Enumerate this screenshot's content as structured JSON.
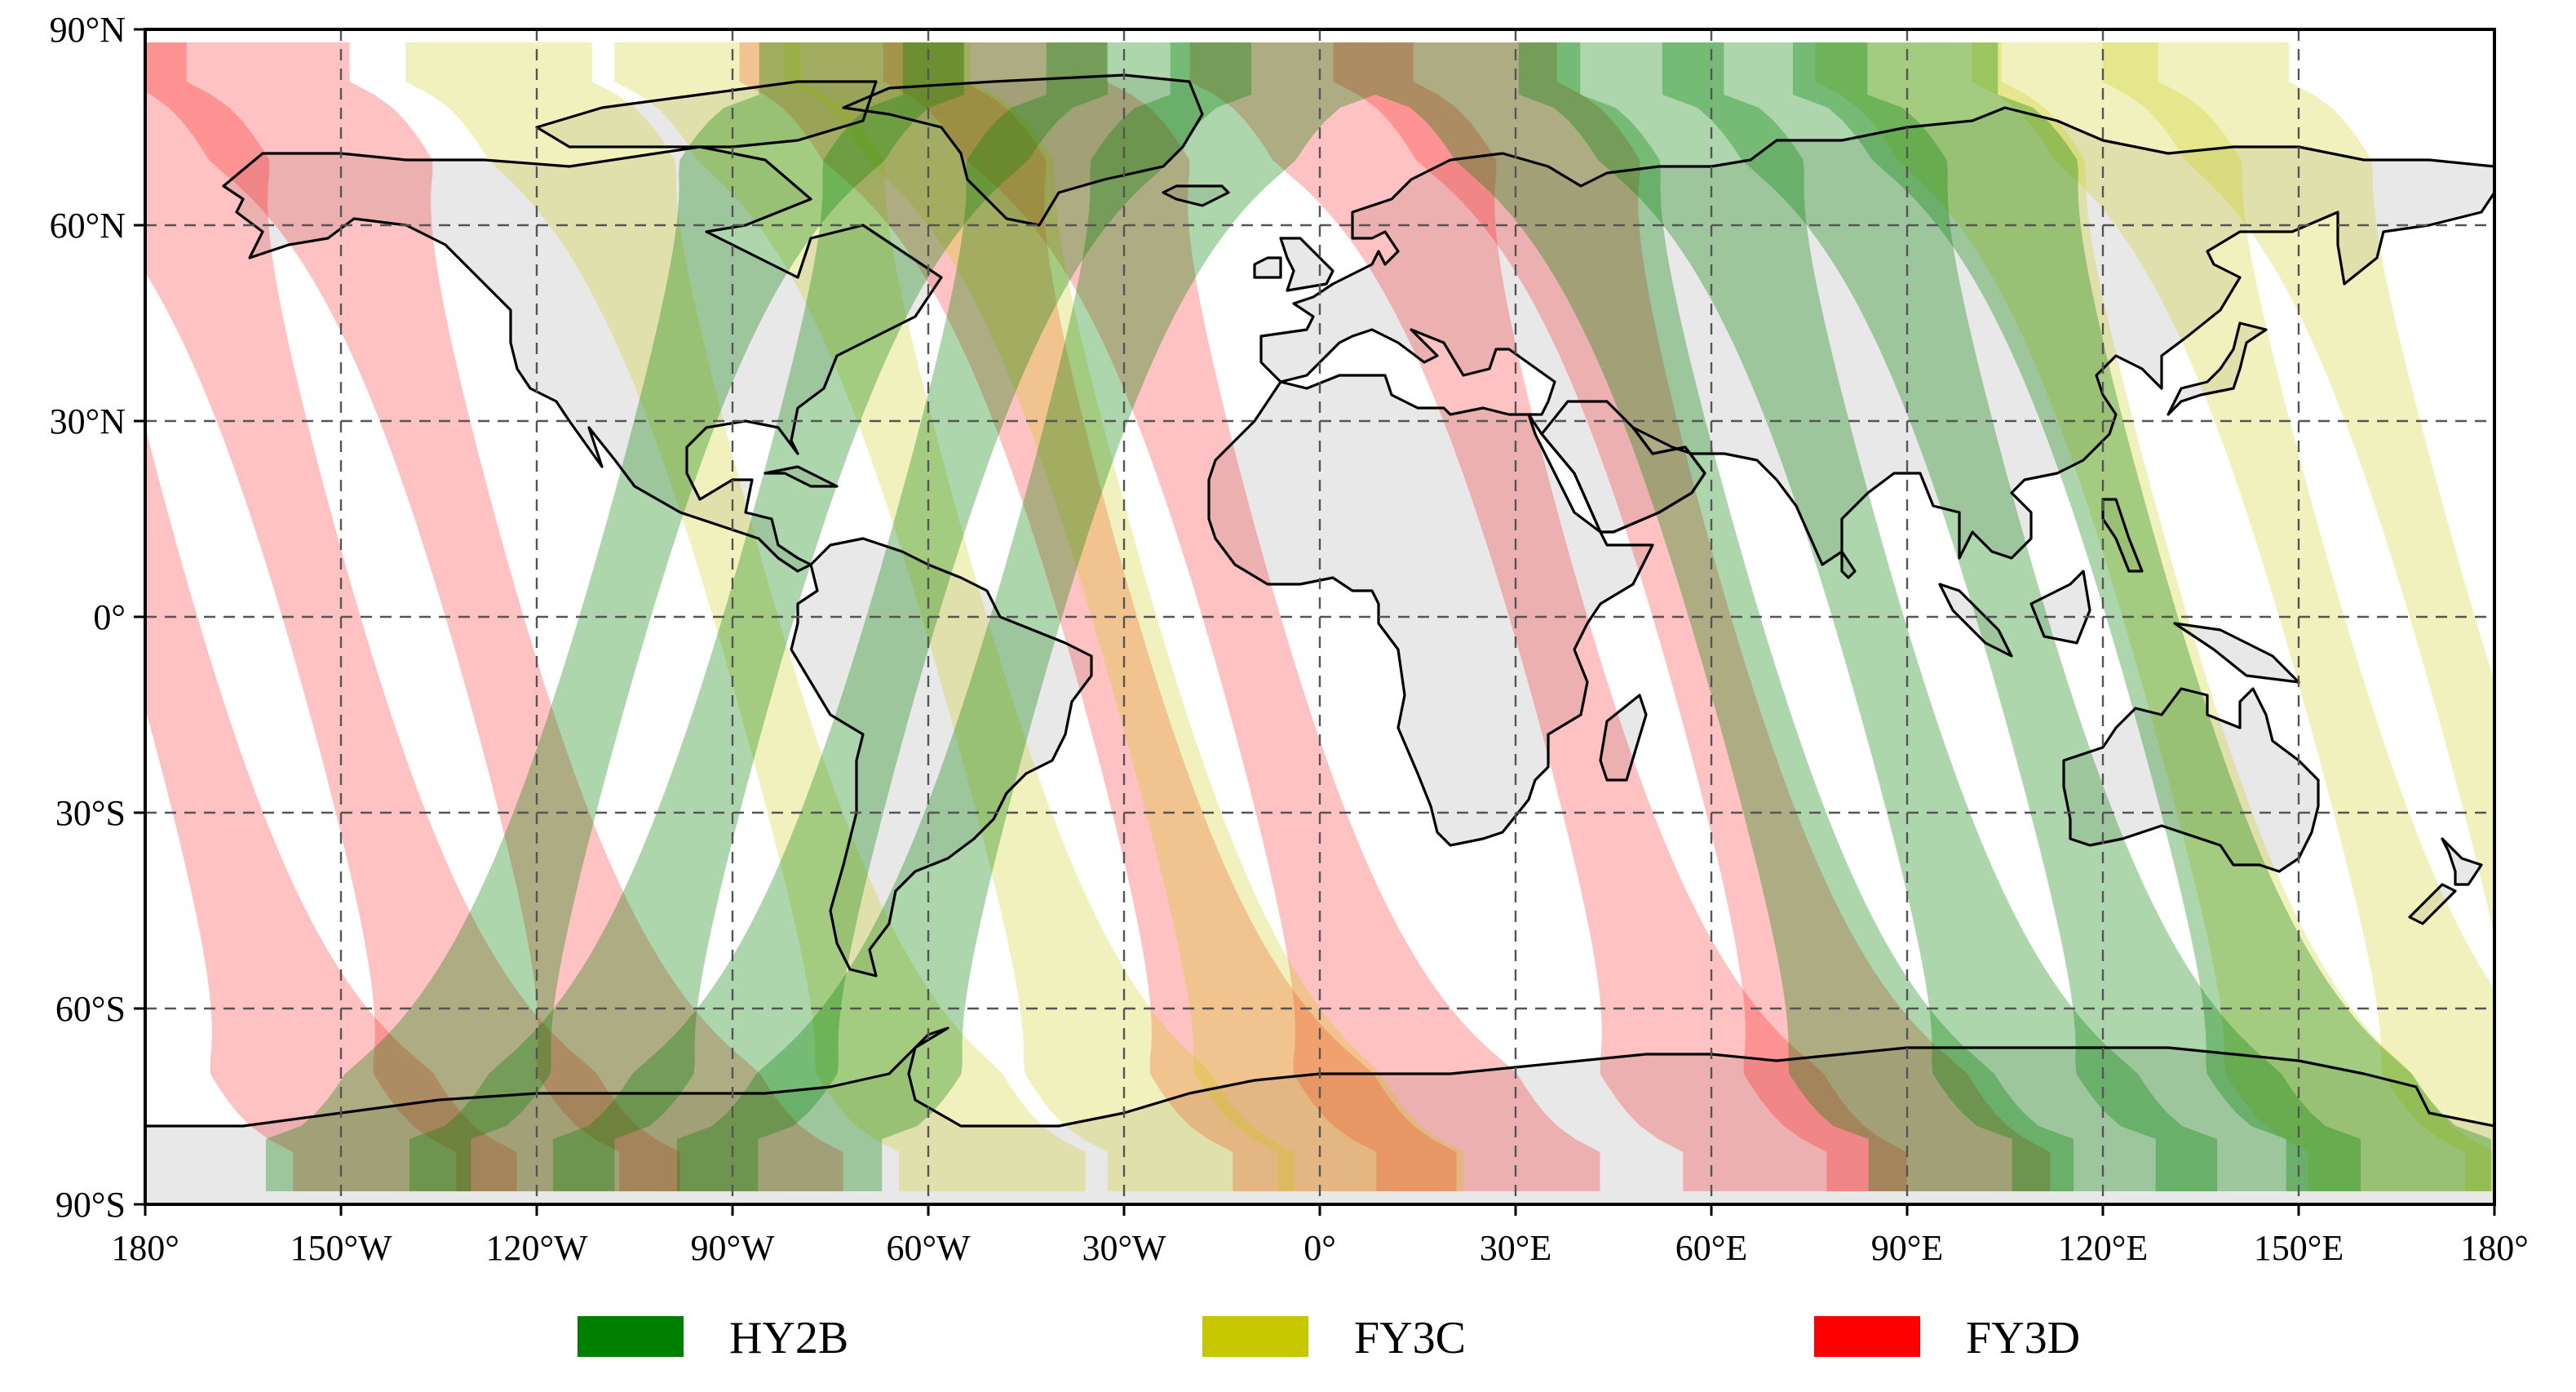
{
  "map": {
    "projection": "equirectangular",
    "lon_range": [
      -180,
      180
    ],
    "lat_range": [
      -90,
      90
    ],
    "grid": true,
    "grid_lon_step": 30,
    "grid_lat_step": 30,
    "land_color": "#e8e8e8",
    "coastline_color": "#000000"
  },
  "axes": {
    "x_ticks": [
      {
        "value": -180,
        "label": "180°"
      },
      {
        "value": -150,
        "label": "150°W"
      },
      {
        "value": -120,
        "label": "120°W"
      },
      {
        "value": -90,
        "label": "90°W"
      },
      {
        "value": -60,
        "label": "60°W"
      },
      {
        "value": -30,
        "label": "30°W"
      },
      {
        "value": 0,
        "label": "0°"
      },
      {
        "value": 30,
        "label": "30°E"
      },
      {
        "value": 60,
        "label": "60°E"
      },
      {
        "value": 90,
        "label": "90°E"
      },
      {
        "value": 120,
        "label": "120°E"
      },
      {
        "value": 150,
        "label": "150°E"
      },
      {
        "value": 180,
        "label": "180°"
      }
    ],
    "y_ticks": [
      {
        "value": 90,
        "label": "90°N"
      },
      {
        "value": 60,
        "label": "60°N"
      },
      {
        "value": 30,
        "label": "30°N"
      },
      {
        "value": 0,
        "label": "0°"
      },
      {
        "value": -30,
        "label": "30°S"
      },
      {
        "value": -60,
        "label": "60°S"
      },
      {
        "value": -90,
        "label": "90°S"
      }
    ]
  },
  "swaths": [
    {
      "satellite": "FY3D",
      "color": "#ff0000",
      "opacity": 0.24,
      "width_deg": 12,
      "max_lat": 81,
      "ascending": false,
      "cross_lons": [
        -178,
        -153,
        -128,
        -34,
        -12,
        35,
        57
      ]
    },
    {
      "satellite": "FY3C",
      "color": "#c8c800",
      "opacity": 0.26,
      "width_deg": 10,
      "max_lat": 81,
      "ascending": false,
      "cross_lons": [
        -88,
        -56,
        -30,
        128,
        152,
        172
      ]
    },
    {
      "satellite": "HY2B",
      "color": "#008000",
      "opacity": 0.32,
      "width_deg": 11,
      "max_lat": 80,
      "ascending": true,
      "cross_lons": [
        -108,
        -86,
        -64,
        -45
      ]
    },
    {
      "satellite": "HY2B",
      "color": "#008000",
      "opacity": 0.32,
      "width_deg": 11,
      "max_lat": 80,
      "ascending": false,
      "cross_lons": [
        62,
        84,
        106,
        126
      ]
    }
  ],
  "legend": {
    "placement": "bottom",
    "items": [
      {
        "label": "HY2B",
        "color": "#008000"
      },
      {
        "label": "FY3C",
        "color": "#c8c800"
      },
      {
        "label": "FY3D",
        "color": "#ff0000"
      }
    ]
  }
}
